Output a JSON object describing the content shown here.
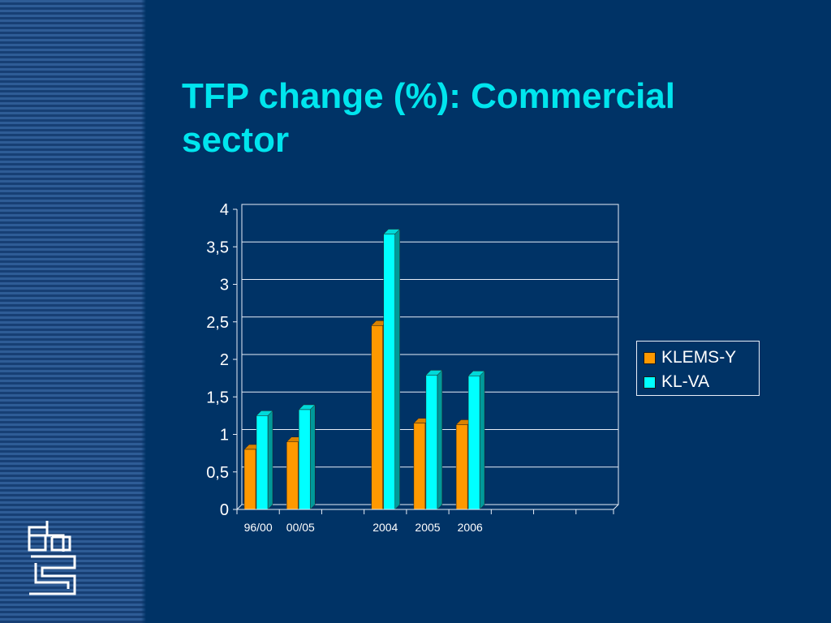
{
  "slide": {
    "title": "TFP change (%): Commercial sector"
  },
  "logo": {
    "icon": "cbs-logo-icon"
  },
  "chart_data": {
    "type": "bar",
    "categories": [
      "96/00",
      "00/05",
      "",
      "2004",
      "2005",
      "2006",
      "",
      "",
      ""
    ],
    "series": [
      {
        "name": "KLEMS-Y",
        "color": "#ff9900",
        "values": [
          0.8,
          0.9,
          null,
          2.45,
          1.15,
          1.13,
          null,
          null,
          null
        ]
      },
      {
        "name": "KL-VA",
        "color": "#00ffff",
        "values": [
          1.25,
          1.33,
          null,
          3.67,
          1.79,
          1.78,
          null,
          null,
          null
        ]
      }
    ],
    "title": "",
    "xlabel": "",
    "ylabel": "",
    "ylim": [
      0,
      4
    ],
    "yticks": [
      "0",
      "0,5",
      "1",
      "1,5",
      "2",
      "2,5",
      "3",
      "3,5",
      "4"
    ],
    "grid": true,
    "legend_position": "right"
  },
  "colors": {
    "background": "#003366",
    "title": "#00e5ee",
    "text": "#ffffff",
    "plot_frame": "#e8eef8"
  }
}
